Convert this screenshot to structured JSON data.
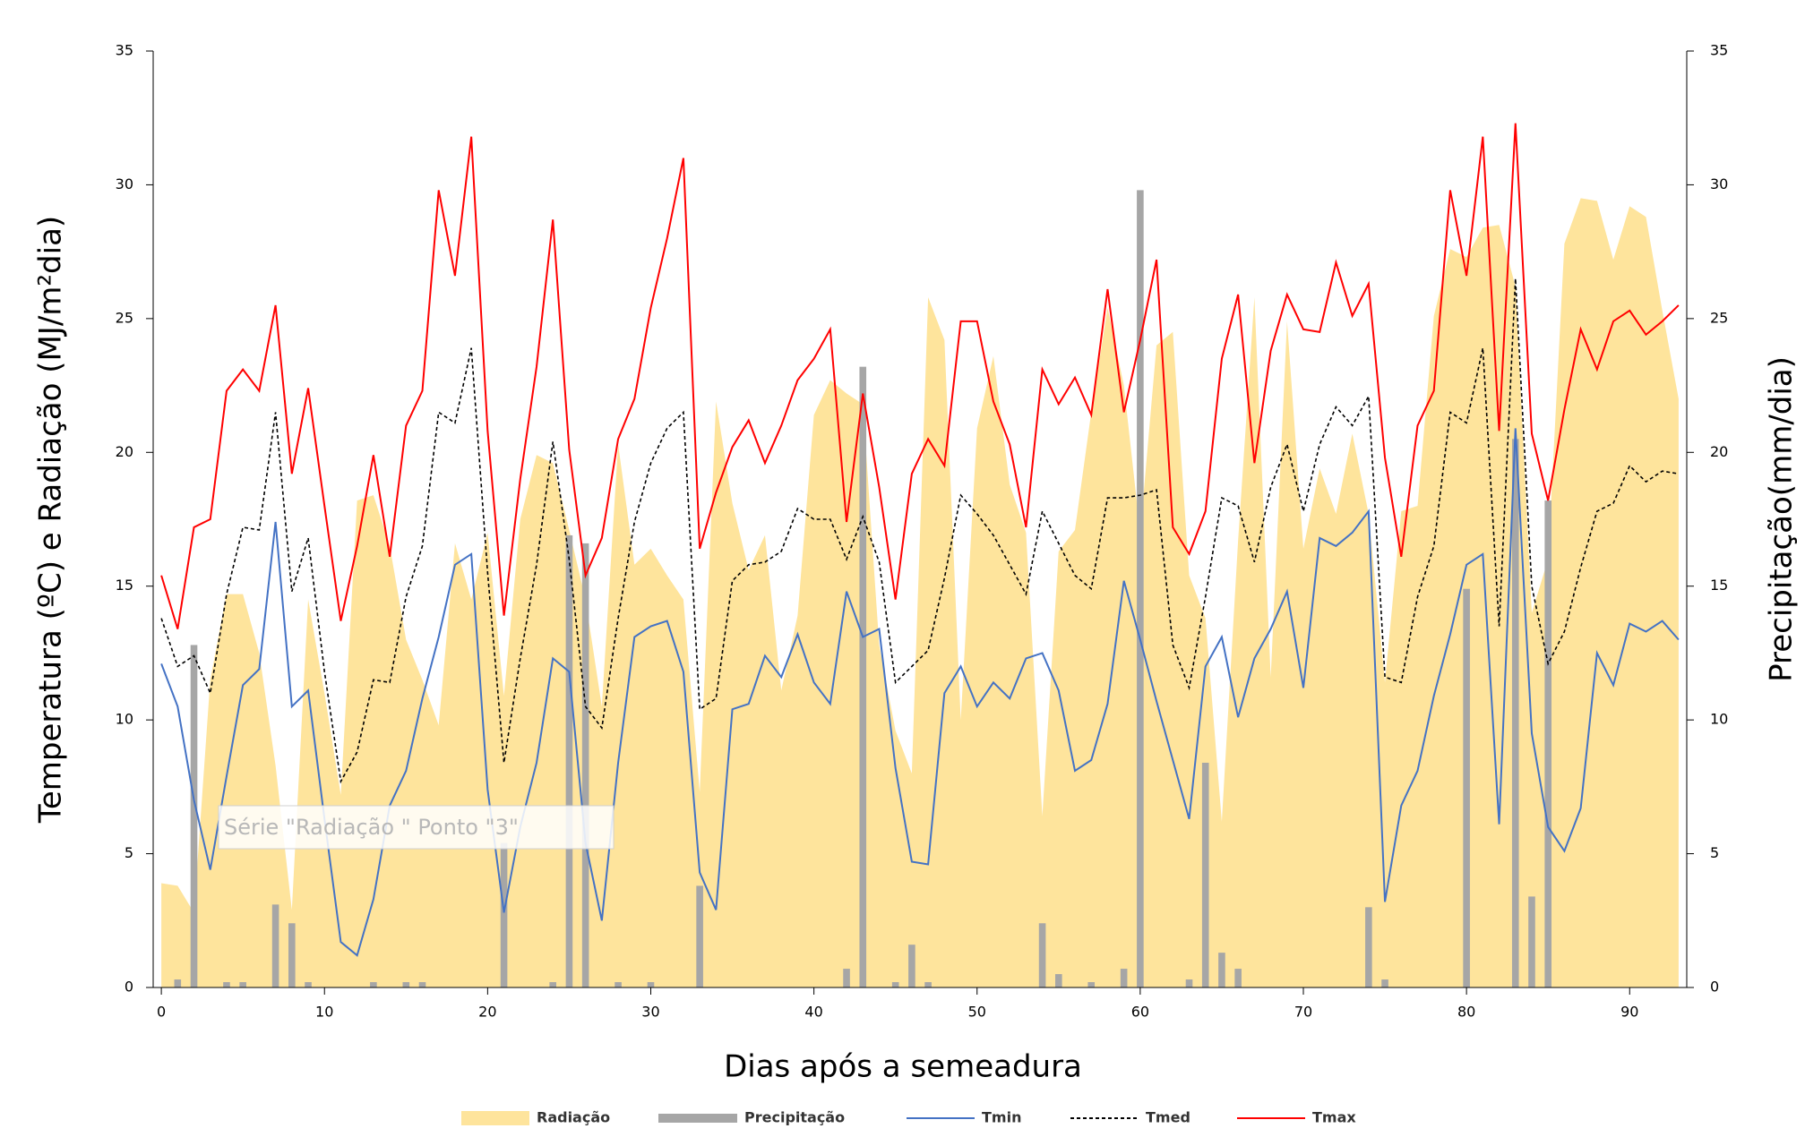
{
  "chart_data": {
    "type": "combo",
    "xlabel": "Dias após a semeadura",
    "ylabel": "Temperatura (ºC) e Radiação (MJ/m²dia)",
    "y2label": "Precipitação(mm/dia)",
    "annotation": "Série \"Radiação \" Ponto \"3\"",
    "x": [
      0,
      1,
      2,
      3,
      4,
      5,
      6,
      7,
      8,
      9,
      10,
      11,
      12,
      13,
      14,
      15,
      16,
      17,
      18,
      19,
      20,
      21,
      22,
      23,
      24,
      25,
      26,
      27,
      28,
      29,
      30,
      31,
      32,
      33,
      34,
      35,
      36,
      37,
      38,
      39,
      40,
      41,
      42,
      43,
      44,
      45,
      46,
      47,
      48,
      49,
      50,
      51,
      52,
      53,
      54,
      55,
      56,
      57,
      58,
      59,
      60,
      61,
      62,
      63,
      64,
      65,
      66,
      67,
      68,
      69,
      70,
      71,
      72,
      73,
      74,
      75,
      76,
      77,
      78,
      79,
      80,
      81,
      82,
      83,
      84,
      85,
      86,
      87,
      88,
      89,
      90,
      91,
      92,
      93
    ],
    "xlim": [
      -0.5,
      93.5
    ],
    "xticks": [
      0,
      10,
      20,
      30,
      40,
      50,
      60,
      70,
      80,
      90
    ],
    "ylim": [
      0,
      35
    ],
    "yticks": [
      0,
      5,
      10,
      15,
      20,
      25,
      30,
      35
    ],
    "y2lim": [
      0,
      35
    ],
    "y2ticks": [
      0,
      5,
      10,
      15,
      20,
      25,
      30,
      35
    ],
    "series": [
      {
        "name": "Radiação",
        "type": "area",
        "color": "#fee49c",
        "values": [
          3.9,
          3.8,
          2.8,
          11.5,
          14.7,
          14.7,
          12.5,
          8.3,
          2.9,
          14.5,
          11.0,
          7.2,
          18.2,
          18.4,
          16.5,
          13.0,
          11.5,
          9.8,
          16.6,
          14.5,
          17.0,
          10.9,
          17.5,
          19.9,
          19.6,
          17.1,
          14.5,
          10.5,
          20.3,
          15.8,
          16.4,
          15.4,
          14.5,
          7.3,
          21.9,
          18.1,
          15.6,
          16.9,
          11.1,
          13.9,
          21.4,
          22.7,
          22.2,
          21.8,
          12.8,
          9.6,
          8.0,
          25.8,
          24.2,
          10.0,
          20.9,
          23.6,
          18.8,
          17.0,
          6.4,
          16.3,
          17.1,
          21.5,
          25.4,
          22.5,
          17.0,
          24.0,
          24.5,
          15.4,
          13.8,
          6.2,
          16.7,
          25.8,
          11.6,
          24.9,
          16.4,
          19.4,
          17.7,
          20.7,
          17.7,
          11.4,
          17.8,
          18.0,
          25.1,
          27.6,
          27.3,
          28.4,
          28.5,
          26.2,
          14.0,
          16.0,
          27.8,
          29.5,
          29.4,
          27.2,
          29.2,
          28.8,
          25.3,
          22.0
        ]
      },
      {
        "name": "Precipitação",
        "type": "bar",
        "axis": "y2",
        "color": "#a6a6a6",
        "values": [
          0,
          0.3,
          12.8,
          0,
          0.2,
          0.2,
          0,
          3.1,
          2.4,
          0.2,
          0,
          0,
          0,
          0.2,
          0,
          0.2,
          0.2,
          0,
          0,
          0,
          0,
          5.4,
          0,
          0,
          0.2,
          16.9,
          16.6,
          0,
          0.2,
          0,
          0.2,
          0,
          0,
          3.8,
          0,
          0,
          0,
          0,
          0,
          0,
          0,
          0,
          0.7,
          23.2,
          0,
          0.2,
          1.6,
          0.2,
          0,
          0,
          0,
          0,
          0,
          0,
          2.4,
          0.5,
          0,
          0.2,
          0,
          0.7,
          29.8,
          0,
          0,
          0.3,
          8.4,
          1.3,
          0.7,
          0,
          0,
          0,
          0,
          0,
          0,
          0,
          3.0,
          0.3,
          0,
          0,
          0,
          0,
          14.9,
          0,
          0,
          20.5,
          3.4,
          18.2,
          0,
          0,
          0,
          0,
          0,
          0,
          0,
          0
        ]
      },
      {
        "name": "Tmin",
        "type": "line",
        "color": "#4472c4",
        "values": [
          12.1,
          10.5,
          7.0,
          4.4,
          7.9,
          11.3,
          11.9,
          17.4,
          10.5,
          11.1,
          6.3,
          1.7,
          1.2,
          3.3,
          6.8,
          8.1,
          10.8,
          13.1,
          15.8,
          16.2,
          7.4,
          2.8,
          6.0,
          8.4,
          12.3,
          11.8,
          5.4,
          2.5,
          8.4,
          13.1,
          13.5,
          13.7,
          11.8,
          4.3,
          2.9,
          10.4,
          10.6,
          12.4,
          11.6,
          13.2,
          11.4,
          10.6,
          14.8,
          13.1,
          13.4,
          8.2,
          4.7,
          4.6,
          11.0,
          12.0,
          10.5,
          11.4,
          10.8,
          12.3,
          12.5,
          11.1,
          8.1,
          8.5,
          10.6,
          15.2,
          13.0,
          10.7,
          8.5,
          6.3,
          12.0,
          13.1,
          10.1,
          12.3,
          13.4,
          14.8,
          11.2,
          16.8,
          16.5,
          17.0,
          17.8,
          3.2,
          6.8,
          8.1,
          10.9,
          13.2,
          15.8,
          16.2,
          6.1,
          20.9,
          9.5,
          6.0,
          5.1,
          6.7,
          12.5,
          11.3,
          13.6,
          13.3,
          13.7,
          13.0
        ]
      },
      {
        "name": "Tmed",
        "type": "line",
        "line_style": "dashed",
        "color": "#000000",
        "values": [
          13.8,
          12.0,
          12.4,
          11.0,
          14.7,
          17.2,
          17.1,
          21.5,
          14.8,
          16.8,
          11.8,
          7.7,
          8.8,
          11.5,
          11.4,
          14.6,
          16.5,
          21.5,
          21.1,
          23.9,
          15.5,
          8.4,
          12.3,
          15.8,
          20.4,
          16.0,
          10.5,
          9.7,
          13.8,
          17.4,
          19.6,
          20.9,
          21.5,
          10.4,
          10.8,
          15.2,
          15.8,
          15.9,
          16.3,
          17.9,
          17.5,
          17.5,
          16.0,
          17.6,
          15.9,
          11.4,
          12.0,
          12.6,
          15.3,
          18.4,
          17.7,
          16.9,
          15.8,
          14.7,
          17.8,
          16.6,
          15.4,
          14.9,
          18.3,
          18.3,
          18.4,
          18.6,
          12.8,
          11.2,
          14.6,
          18.3,
          18.0,
          15.9,
          18.7,
          20.3,
          17.8,
          20.3,
          21.7,
          21.0,
          22.1,
          11.6,
          11.4,
          14.6,
          16.5,
          21.5,
          21.1,
          23.9,
          13.5,
          26.5,
          15.0,
          12.1,
          13.3,
          15.7,
          17.8,
          18.1,
          19.5,
          18.9,
          19.3,
          19.2
        ]
      },
      {
        "name": "Tmax",
        "type": "line",
        "color": "#ff0000",
        "values": [
          15.4,
          13.4,
          17.2,
          17.5,
          22.3,
          23.1,
          22.3,
          25.5,
          19.2,
          22.4,
          18.0,
          13.7,
          16.5,
          19.9,
          16.1,
          21.0,
          22.3,
          29.8,
          26.6,
          31.8,
          20.8,
          13.9,
          19.0,
          23.2,
          28.7,
          20.1,
          15.4,
          16.8,
          20.5,
          22.0,
          25.4,
          28.0,
          31.0,
          16.4,
          18.5,
          20.2,
          21.2,
          19.6,
          21.0,
          22.7,
          23.5,
          24.6,
          17.4,
          22.2,
          18.7,
          14.5,
          19.2,
          20.5,
          19.5,
          24.9,
          24.9,
          21.9,
          20.3,
          17.2,
          23.1,
          21.8,
          22.8,
          21.4,
          26.1,
          21.5,
          24.2,
          27.2,
          17.2,
          16.2,
          17.8,
          23.5,
          25.9,
          19.6,
          23.8,
          25.9,
          24.6,
          24.5,
          27.1,
          25.1,
          26.3,
          19.8,
          16.1,
          21.0,
          22.3,
          29.8,
          26.6,
          31.8,
          20.8,
          32.3,
          20.7,
          18.2,
          21.6,
          24.6,
          23.1,
          24.9,
          25.3,
          24.4,
          24.9,
          25.5
        ]
      }
    ]
  }
}
